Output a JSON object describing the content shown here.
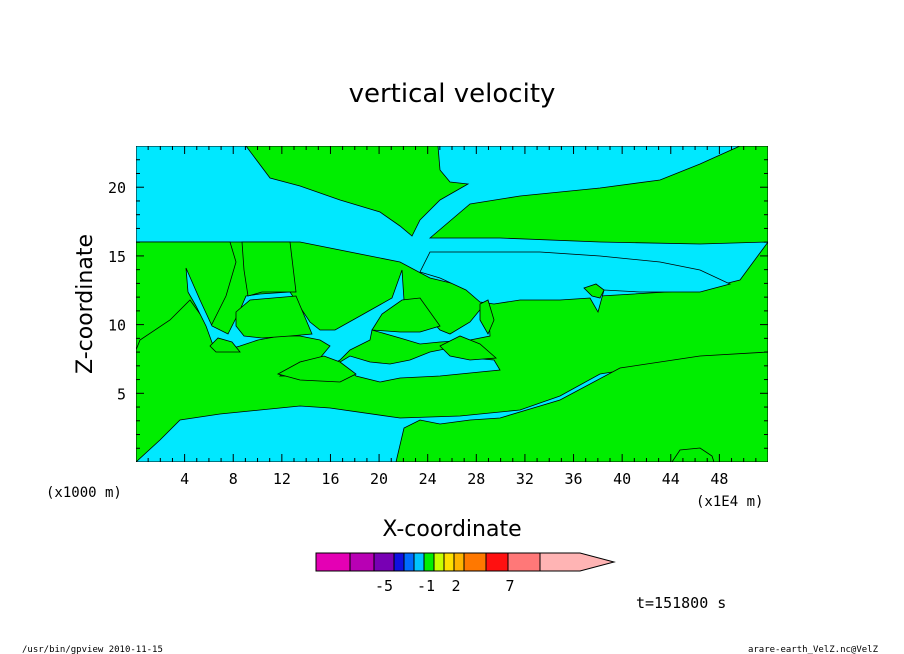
{
  "chart_data": {
    "type": "heatmap",
    "title": "vertical velocity",
    "xlabel": "X-coordinate",
    "ylabel": "Z-coordinate",
    "x_unit_label": "(x1E4 m)",
    "z_unit_label": "(x1000 m)",
    "xlim": [
      0,
      52
    ],
    "ylim": [
      0,
      23
    ],
    "x_ticks": [
      "4",
      "8",
      "12",
      "16",
      "20",
      "24",
      "28",
      "32",
      "36",
      "40",
      "44",
      "48"
    ],
    "y_ticks": [
      "5",
      "10",
      "15",
      "20"
    ],
    "colors": {
      "positive": "#00ee00",
      "negative": "#00e8ff"
    },
    "colorbar": {
      "colors": [
        "#e400b4",
        "#b800b4",
        "#7800b4",
        "#1010e0",
        "#006cff",
        "#00c4ff",
        "#00ee00",
        "#c8ff00",
        "#ffe000",
        "#ffb400",
        "#ff7800",
        "#ff1010",
        "#ff7878",
        "#ffb4b4"
      ],
      "labels": [
        "-5",
        "-1",
        "2",
        "7"
      ]
    },
    "time_label": "t=151800 s"
  },
  "footer": {
    "left": "/usr/bin/gpview   2010-11-15",
    "right": "arare-earth_VelZ.nc@VelZ"
  }
}
